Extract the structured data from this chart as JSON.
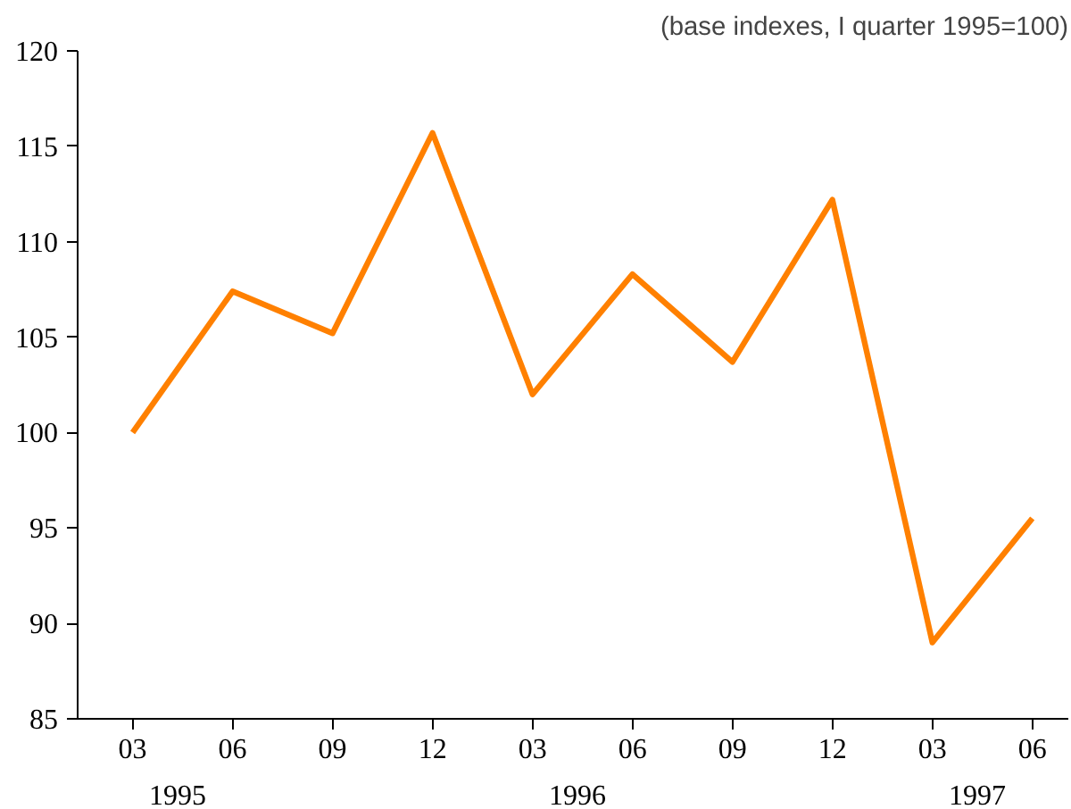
{
  "chart_data": {
    "type": "line",
    "title": "(base indexes, I quarter 1995=100)",
    "categories": [
      "03",
      "06",
      "09",
      "12",
      "03",
      "06",
      "09",
      "12",
      "03",
      "06"
    ],
    "series": [
      {
        "color": "#ff8000",
        "values": [
          100,
          107.4,
          105.2,
          115.7,
          102,
          108.3,
          103.7,
          112.2,
          89,
          95.5
        ]
      }
    ],
    "ylim": [
      85,
      120
    ],
    "yticks": [
      85,
      90,
      95,
      100,
      105,
      110,
      115,
      120
    ],
    "annotations": [
      "1995",
      "1996",
      "1997"
    ],
    "grid": false,
    "marker": "none",
    "line_style": "solid"
  }
}
